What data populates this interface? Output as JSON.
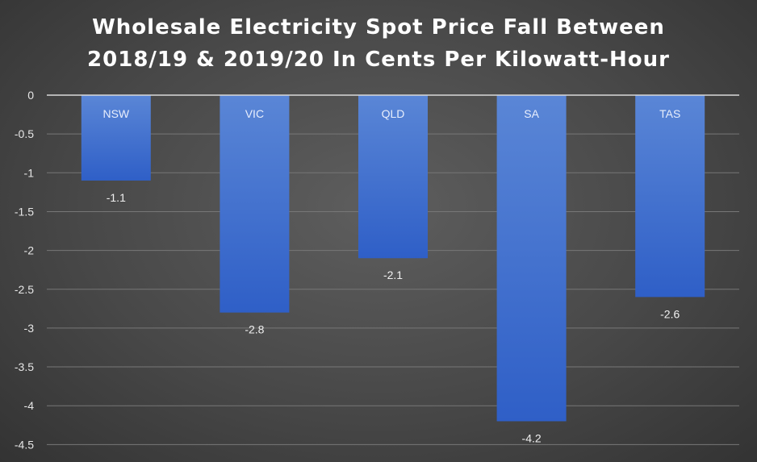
{
  "chart_data": {
    "type": "bar",
    "title_lines": [
      "Wholesale Electricity Spot Price Fall Between",
      "2018/19 & 2019/20 In Cents Per Kilowatt-Hour"
    ],
    "categories": [
      "NSW",
      "VIC",
      "QLD",
      "SA",
      "TAS"
    ],
    "values": [
      -1.1,
      -2.8,
      -2.1,
      -4.2,
      -2.6
    ],
    "data_labels": [
      "-1.1",
      "-2.8",
      "-2.1",
      "-4.2",
      "-2.6"
    ],
    "yticks": [
      "0",
      "-0.5",
      "-1",
      "-1.5",
      "-2",
      "-2.5",
      "-3",
      "-3.5",
      "-4",
      "-4.5"
    ],
    "ylim": [
      -4.5,
      0
    ],
    "grid": true,
    "colors": {
      "bar_top": "#5a86d6",
      "bar_bottom": "#2f5fc7",
      "grid": "#777777",
      "axis": "#d9d9d9"
    }
  }
}
